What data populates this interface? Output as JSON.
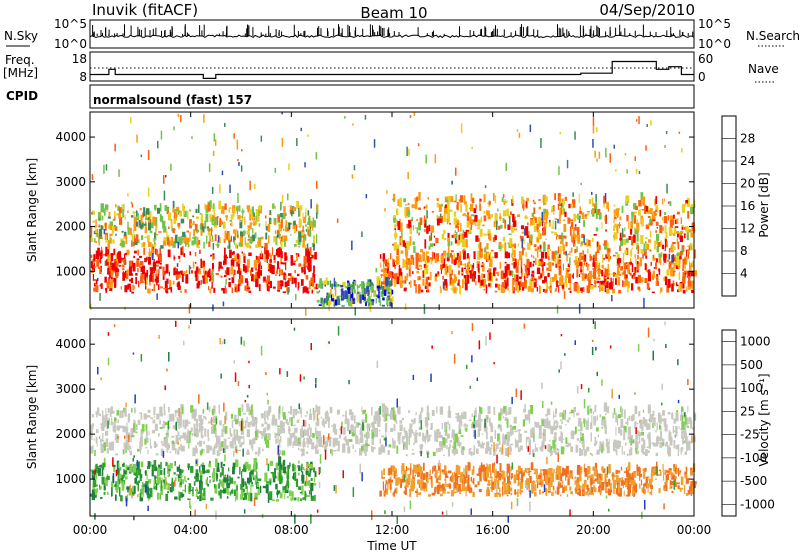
{
  "header": {
    "station": "Inuvik (fitACF)",
    "beam": "Beam 10",
    "date": "04/Sep/2010"
  },
  "top_panels": {
    "nsky_label": "N.Sky",
    "nsky_ticks": [
      "10^5",
      "10^0"
    ],
    "nsearch_label": "N.Search",
    "nsearch_ticks": [
      "10^5",
      "10^0"
    ],
    "freq_label": "Freq.",
    "freq_unit": "[MHz]",
    "freq_ticks": [
      "18",
      "8"
    ],
    "nave_label": "Nave",
    "nave_ticks": [
      "60",
      "0"
    ],
    "cpid_label": "CPID",
    "cpid_text": "normalsound (fast) 157"
  },
  "colors": {
    "power_scale": [
      "#0000ee",
      "#2f4fb0",
      "#3a8a5a",
      "#6cc44a",
      "#e8d020",
      "#ff9a10",
      "#ff6010",
      "#ee0000"
    ],
    "velocity_scale": [
      "#2040c0",
      "#1f7f3f",
      "#2fa02f",
      "#7fd04f",
      "#c8c8c0",
      "#f0a030",
      "#f07020",
      "#ee0000"
    ]
  },
  "chart_data": [
    {
      "type": "line",
      "title": "N.Sky / N.Search",
      "ylabel": "N.Sky",
      "x": [
        "00:00",
        "04:00",
        "08:00",
        "12:00",
        "16:00",
        "20:00",
        "00:00"
      ],
      "ylim_ticks": [
        "10^0",
        "10^5"
      ],
      "series": [
        {
          "name": "N.Sky",
          "style": "solid"
        },
        {
          "name": "N.Search",
          "style": "dotted"
        }
      ]
    },
    {
      "type": "line",
      "ylabel": "Freq. [MHz]",
      "x": [
        "00:00",
        "04:00",
        "08:00",
        "12:00",
        "16:00",
        "20:00",
        "00:00"
      ],
      "series": [
        {
          "name": "Freq.",
          "style": "solid",
          "points": [
            [
              "00:00",
              10.5
            ],
            [
              "00:45",
              12.5
            ],
            [
              "01:00",
              10.5
            ],
            [
              "04:30",
              9.0
            ],
            [
              "05:00",
              10.5
            ],
            [
              "19:30",
              11.0
            ],
            [
              "20:45",
              15.5
            ],
            [
              "22:30",
              12.5
            ],
            [
              "23:00",
              13.5
            ],
            [
              "23:30",
              10.5
            ]
          ]
        },
        {
          "name": "Nave",
          "style": "dotted",
          "points": [
            [
              "00:00",
              20
            ],
            [
              "24:00",
              20
            ]
          ]
        }
      ],
      "ylim_left": [
        8,
        18
      ],
      "ylim_right": [
        0,
        60
      ]
    },
    {
      "type": "heatmap",
      "title": "Power",
      "ylabel": "Slant Range [km]",
      "xlabel": "",
      "x_ticks": [
        "00:00",
        "04:00",
        "08:00",
        "12:00",
        "16:00",
        "20:00",
        "00:00"
      ],
      "xlim_hours": [
        0,
        24
      ],
      "ylim": [
        180,
        4560
      ],
      "y_ticks": [
        1000,
        2000,
        3000,
        4000
      ],
      "colorbar": {
        "label": "Power [dB]",
        "ticks": [
          4,
          8,
          12,
          16,
          20,
          24,
          28
        ],
        "range": [
          0,
          32
        ]
      },
      "features": [
        {
          "name": "near-range band",
          "start": 0,
          "end": 9,
          "range_km": [
            500,
            1400
          ],
          "power_db": 28
        },
        {
          "name": "far-range band",
          "start": 0,
          "end": 9,
          "range_km": [
            1500,
            2400
          ],
          "power_db": 14
        },
        {
          "name": "near-range band",
          "start": 11.5,
          "end": 24,
          "range_km": [
            500,
            1300
          ],
          "power_db": 24
        },
        {
          "name": "far-range band",
          "start": 12,
          "end": 24,
          "range_km": [
            1300,
            2600
          ],
          "power_db": 18
        },
        {
          "name": "low-range scatter",
          "start": 9,
          "end": 12,
          "range_km": [
            200,
            700
          ],
          "power_db": 6
        }
      ]
    },
    {
      "type": "heatmap",
      "title": "Velocity",
      "ylabel": "Slant Range [km]",
      "xlabel": "Time UT",
      "x_ticks": [
        "00:00",
        "04:00",
        "08:00",
        "12:00",
        "16:00",
        "20:00",
        "00:00"
      ],
      "xlim_hours": [
        0,
        24
      ],
      "ylim": [
        180,
        4560
      ],
      "y_ticks": [
        1000,
        2000,
        3000,
        4000
      ],
      "colorbar": {
        "label": "Velocity [m s⁻¹]",
        "ticks": [
          "1000",
          "500",
          "100",
          "25",
          "-25",
          "-100",
          "-500",
          "-1000"
        ]
      },
      "features": [
        {
          "name": "ground scatter band",
          "start": 0,
          "end": 24,
          "range_km": [
            1500,
            2500
          ],
          "velocity": 0
        },
        {
          "name": "near-range band",
          "start": 0,
          "end": 9,
          "range_km": [
            500,
            1300
          ],
          "velocity": 150
        },
        {
          "name": "near-range band",
          "start": 11.5,
          "end": 24,
          "range_km": [
            600,
            1200
          ],
          "velocity": -200
        }
      ]
    }
  ]
}
